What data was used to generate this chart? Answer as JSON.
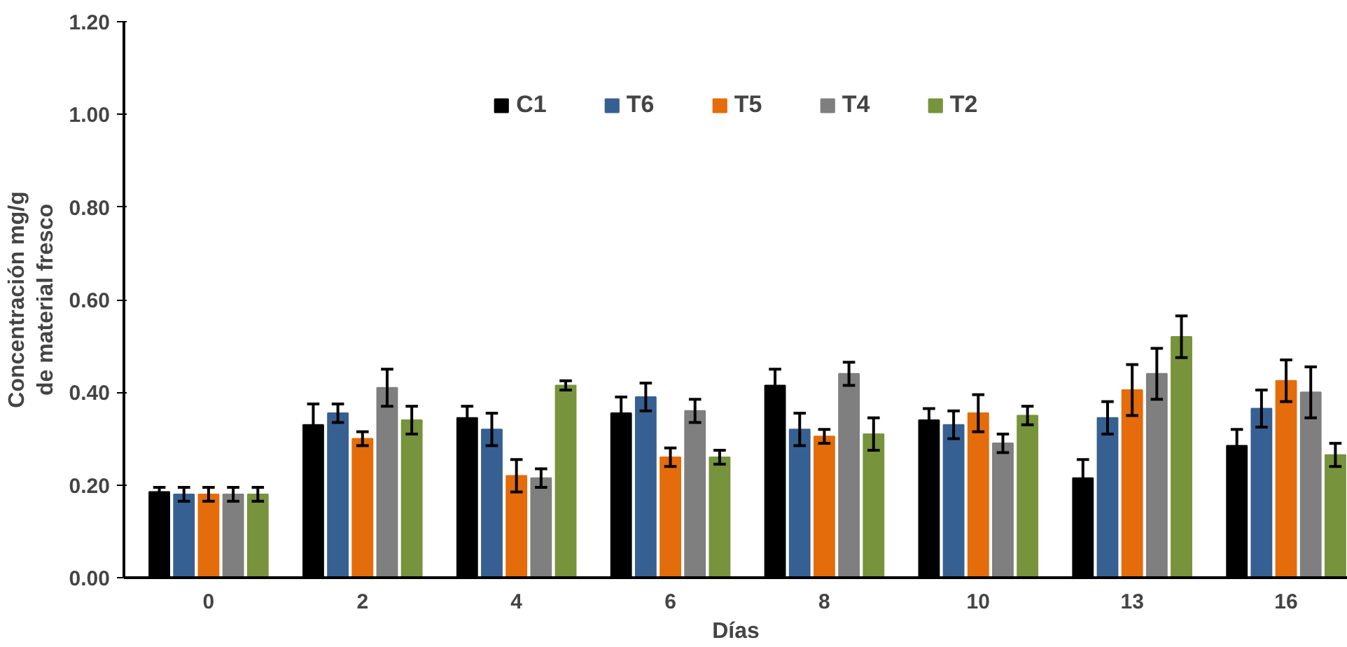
{
  "chart_data": {
    "type": "bar",
    "xlabel": "Días",
    "ylabel": "Concentración mg/g  de material fresco",
    "categories": [
      "0",
      "2",
      "4",
      "6",
      "8",
      "10",
      "13",
      "16"
    ],
    "ylim": [
      0,
      1.2
    ],
    "yticks": [
      {
        "value": 0,
        "label": "0.00"
      },
      {
        "value": 0.2,
        "label": "0.20"
      },
      {
        "value": 0.4,
        "label": "0.40"
      },
      {
        "value": 0.6,
        "label": "0.60"
      },
      {
        "value": 0.8,
        "label": "0.80"
      },
      {
        "value": 1.0,
        "label": "1.00"
      },
      {
        "value": 1.2,
        "label": "1.20"
      }
    ],
    "grid": false,
    "legend": "top",
    "series": [
      {
        "name": "C1",
        "color": "#000000",
        "values": [
          0.185,
          0.33,
          0.345,
          0.355,
          0.415,
          0.34,
          0.215,
          0.285
        ],
        "errors": [
          0.01,
          0.045,
          0.025,
          0.035,
          0.035,
          0.025,
          0.04,
          0.035
        ]
      },
      {
        "name": "T6",
        "color": "#376092",
        "values": [
          0.18,
          0.355,
          0.32,
          0.39,
          0.32,
          0.33,
          0.345,
          0.365
        ],
        "errors": [
          0.015,
          0.02,
          0.035,
          0.03,
          0.035,
          0.03,
          0.035,
          0.04
        ]
      },
      {
        "name": "T5",
        "color": "#e46c0a",
        "values": [
          0.18,
          0.3,
          0.22,
          0.26,
          0.305,
          0.355,
          0.405,
          0.425
        ],
        "errors": [
          0.015,
          0.015,
          0.035,
          0.02,
          0.015,
          0.04,
          0.055,
          0.045
        ]
      },
      {
        "name": "T4",
        "color": "#7f7f7f",
        "values": [
          0.18,
          0.41,
          0.215,
          0.36,
          0.44,
          0.29,
          0.44,
          0.4
        ],
        "errors": [
          0.015,
          0.04,
          0.02,
          0.025,
          0.025,
          0.02,
          0.055,
          0.055
        ]
      },
      {
        "name": "T2",
        "color": "#77933c",
        "values": [
          0.18,
          0.34,
          0.415,
          0.26,
          0.31,
          0.35,
          0.52,
          0.265
        ],
        "errors": [
          0.015,
          0.03,
          0.01,
          0.015,
          0.035,
          0.02,
          0.045,
          0.025
        ]
      }
    ]
  }
}
